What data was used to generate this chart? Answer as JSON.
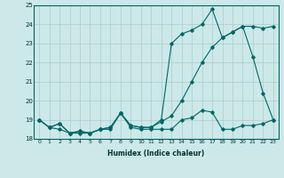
{
  "xlabel": "Humidex (Indice chaleur)",
  "x_values": [
    0,
    1,
    2,
    3,
    4,
    5,
    6,
    7,
    8,
    9,
    10,
    11,
    12,
    13,
    14,
    15,
    16,
    17,
    18,
    19,
    20,
    21,
    22,
    23
  ],
  "line1": [
    19.0,
    18.6,
    18.5,
    18.3,
    18.3,
    18.3,
    18.5,
    18.5,
    19.35,
    18.6,
    18.5,
    18.5,
    18.5,
    18.5,
    19.0,
    19.1,
    19.5,
    19.4,
    18.5,
    18.5,
    18.7,
    18.7,
    18.8,
    19.0
  ],
  "line2": [
    19.0,
    18.6,
    18.8,
    18.3,
    18.4,
    18.3,
    18.5,
    18.6,
    19.35,
    18.7,
    18.6,
    18.6,
    19.0,
    23.0,
    23.5,
    23.7,
    24.0,
    24.8,
    23.3,
    23.6,
    23.9,
    22.3,
    20.4,
    19.0
  ],
  "line3": [
    19.0,
    18.6,
    18.8,
    18.3,
    18.4,
    18.3,
    18.5,
    18.6,
    19.35,
    18.7,
    18.6,
    18.6,
    18.9,
    19.2,
    20.0,
    21.0,
    22.0,
    22.8,
    23.3,
    23.6,
    23.9,
    23.9,
    23.8,
    23.9
  ],
  "bg_color": "#cce8e8",
  "line_color": "#006666",
  "grid_color": "#aacccc",
  "ylim": [
    18.0,
    25.0
  ],
  "xlim": [
    -0.5,
    23.5
  ],
  "yticks": [
    18,
    19,
    20,
    21,
    22,
    23,
    24,
    25
  ],
  "xticks": [
    0,
    1,
    2,
    3,
    4,
    5,
    6,
    7,
    8,
    9,
    10,
    11,
    12,
    13,
    14,
    15,
    16,
    17,
    18,
    19,
    20,
    21,
    22,
    23
  ]
}
